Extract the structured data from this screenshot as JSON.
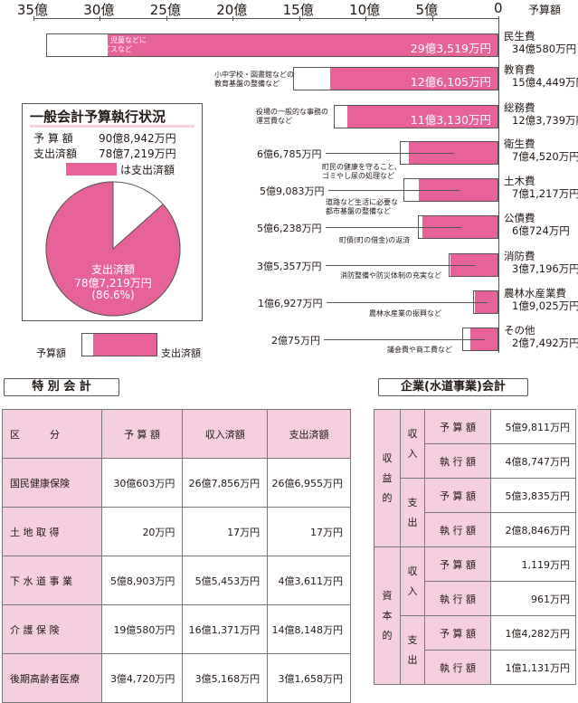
{
  "axis": {
    "ticks": [
      "35億",
      "30億",
      "25億",
      "20億",
      "15億",
      "10億",
      "5億",
      "0"
    ],
    "unit_label": "予算額"
  },
  "summary_box": {
    "title": "一般会計予算執行状況",
    "budget_label": "予 算 額",
    "budget_value": "90億8,942万円",
    "spent_label": "支出済額",
    "spent_value": "78億7,219万円",
    "legend": "は支出済額",
    "pie_line1": "支出済額",
    "pie_line2": "78億7,219万円",
    "pie_line3": "(86.6%)",
    "spent_fraction": 0.866
  },
  "key": {
    "budget": "予算額",
    "spent": "支出済額"
  },
  "chart_data": {
    "type": "bar",
    "orientation": "horizontal",
    "xlim": [
      0,
      35
    ],
    "x_unit": "億円",
    "categories": [
      {
        "name": "民生費",
        "budget": "34億580万円",
        "budget_oku": 34.06,
        "spent_label": "29億3,519万円",
        "spent_oku": 29.35,
        "desc": [
          "高齢者や障害者・児童などに",
          "対する福祉サービスなど"
        ],
        "label_inside": true
      },
      {
        "name": "教育費",
        "budget": "15億4,449万円",
        "budget_oku": 15.44,
        "spent_label": "12億6,105万円",
        "spent_oku": 12.61,
        "desc": [
          "小中学校・図書館などの",
          "教育基盤の整備など"
        ],
        "label_inside": true
      },
      {
        "name": "総務費",
        "budget": "12億3,739万円",
        "budget_oku": 12.37,
        "spent_label": "11億3,130万円",
        "spent_oku": 11.31,
        "desc": [
          "役場の一般的な事務の",
          "運営費など"
        ],
        "label_inside": true
      },
      {
        "name": "衛生費",
        "budget": "7億4,520万円",
        "budget_oku": 7.45,
        "spent_label": "6億6,785万円",
        "spent_oku": 6.68,
        "desc": [
          "町民の健康を守ること、",
          "ゴミやし尿の処理など"
        ],
        "label_inside": false
      },
      {
        "name": "土木費",
        "budget": "7億1,217万円",
        "budget_oku": 7.12,
        "spent_label": "5億9,083万円",
        "spent_oku": 5.91,
        "desc": [
          "道路など生活に必要な",
          "都市基盤の整備など"
        ],
        "label_inside": false
      },
      {
        "name": "公債費",
        "budget": "6億724万円",
        "budget_oku": 6.07,
        "spent_label": "5億6,238万円",
        "spent_oku": 5.62,
        "desc": [
          "町債(町の借金)の返済"
        ],
        "label_inside": false
      },
      {
        "name": "消防費",
        "budget": "3億7,196万円",
        "budget_oku": 3.72,
        "spent_label": "3億5,357万円",
        "spent_oku": 3.54,
        "desc": [
          "消防整備や防災体制の充実など"
        ],
        "label_inside": false
      },
      {
        "name": "農林水産業費",
        "budget": "1億9,025万円",
        "budget_oku": 1.9,
        "spent_label": "1億6,927万円",
        "spent_oku": 1.69,
        "desc": [
          "農林水産業の振興など"
        ],
        "label_inside": false
      },
      {
        "name": "その他",
        "budget": "2億7,492万円",
        "budget_oku": 2.75,
        "spent_label": "2億75万円",
        "spent_oku": 2.01,
        "desc": [
          "議会費や商工費など"
        ],
        "label_inside": false
      }
    ]
  },
  "special": {
    "title": "特 別 会 計",
    "headers": [
      "区　　　分",
      "予 算 額",
      "収入済額",
      "支出済額"
    ],
    "rows": [
      [
        "国民健康保険",
        "30億603万円",
        "26億7,856万円",
        "26億6,955万円"
      ],
      [
        "土 地 取 得",
        "20万円",
        "17万円",
        "17万円"
      ],
      [
        "下 水 道 事 業",
        "5億8,903万円",
        "5億5,453万円",
        "4億3,611万円"
      ],
      [
        "介 護 保 険",
        "19億580万円",
        "16億1,371万円",
        "14億8,148万円"
      ],
      [
        "後期高齢者医療",
        "3億4,720万円",
        "3億5,168万円",
        "3億1,658万円"
      ]
    ]
  },
  "enterprise": {
    "title": "企業(水道事業)会計",
    "groups": [
      {
        "label": "収\n益\n的",
        "subs": [
          {
            "label": "収\n入",
            "rows": [
              [
                "予 算 額",
                "5億9,811万円"
              ],
              [
                "執 行 額",
                "4億8,747万円"
              ]
            ]
          },
          {
            "label": "支\n出",
            "rows": [
              [
                "予 算 額",
                "5億3,835万円"
              ],
              [
                "執 行 額",
                "2億8,846万円"
              ]
            ]
          }
        ]
      },
      {
        "label": "資\n本\n的",
        "subs": [
          {
            "label": "収\n入",
            "rows": [
              [
                "予 算 額",
                "1,119万円"
              ],
              [
                "執 行 額",
                "961万円"
              ]
            ]
          },
          {
            "label": "支\n出",
            "rows": [
              [
                "予 算 額",
                "1億4,282万円"
              ],
              [
                "執 行 額",
                "1億1,131万円"
              ]
            ]
          }
        ]
      }
    ]
  }
}
